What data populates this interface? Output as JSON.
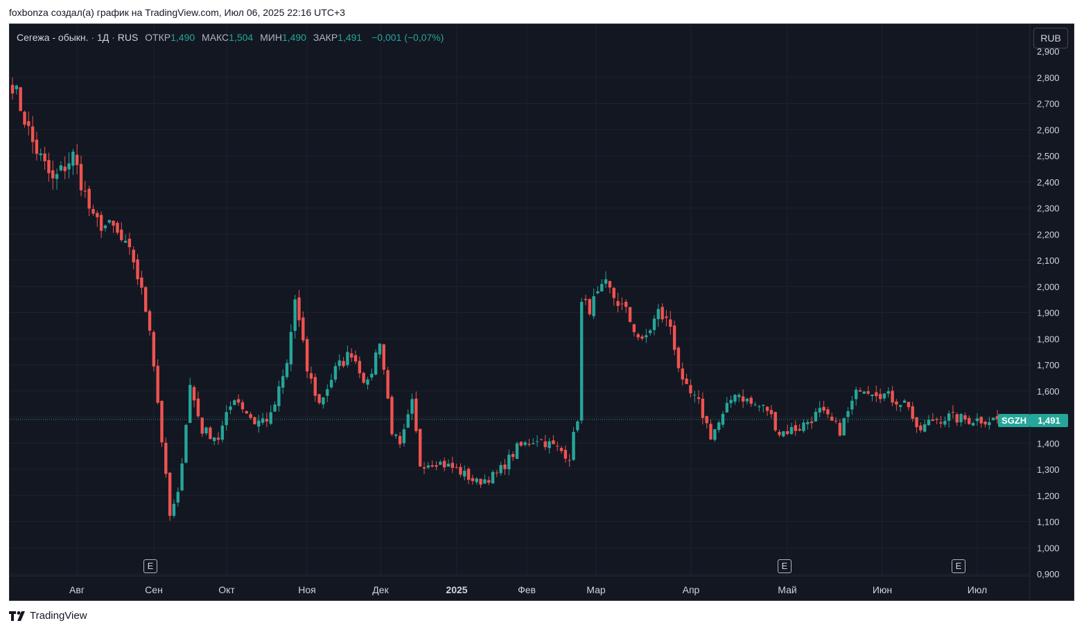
{
  "caption": "foxbonza создал(а) график на TradingView.com, Июл 06, 2025 22:16 UTC+3",
  "legend": {
    "symbol": "Сегежа - обыкн.",
    "interval": "1Д",
    "exchange": "RUS",
    "open_label": "ОТКР",
    "open_value": "1,490",
    "high_label": "МАКС",
    "high_value": "1,504",
    "low_label": "МИН",
    "low_value": "1,490",
    "close_label": "ЗАКР",
    "close_value": "1,491",
    "change": "−0,001 (−0,07%)"
  },
  "currency_button": "RUB",
  "ticker_tag": "SGZH",
  "price_tag": "1,491",
  "earnings_badge": "E",
  "brand": "TradingView",
  "colors": {
    "up": "#26a69a",
    "down": "#ef5350",
    "background": "#131722",
    "grid": "#1e222d",
    "axis_text": "#d1d4dc"
  },
  "chart_data": {
    "type": "candlestick",
    "y_axis": {
      "min": 0.9,
      "max": 2.9,
      "ticks": [
        2.8,
        2.7,
        2.6,
        2.5,
        2.4,
        2.3,
        2.2,
        2.1,
        2.0,
        1.9,
        1.8,
        1.7,
        1.6,
        1.5,
        1.4,
        1.3,
        1.2,
        1.1,
        1.0,
        0.9
      ],
      "tick_labels": [
        "2,800",
        "2,700",
        "2,600",
        "2,500",
        "2,400",
        "2,300",
        "2,200",
        "2,100",
        "2,000",
        "1,900",
        "1,800",
        "1,700",
        "1,600",
        "1,500",
        "1,400",
        "1,300",
        "1,200",
        "1,100",
        "1,000",
        "0,900"
      ],
      "top_partial_label": "2,900"
    },
    "x_axis": {
      "labels": [
        "Авг",
        "Сен",
        "Окт",
        "Ноя",
        "Дек",
        "2025",
        "Фев",
        "Мар",
        "Апр",
        "Май",
        "Июн",
        "Июл"
      ],
      "bold_label": "2025",
      "start": "2024-07-12",
      "end": "2025-07-04",
      "trading_days": 245
    },
    "last_price": 1.491,
    "earnings_markers": [
      "Сен",
      "Май",
      "Июн"
    ],
    "anchors": [
      [
        0,
        2.78
      ],
      [
        5,
        2.55
      ],
      [
        10,
        2.4
      ],
      [
        15,
        2.5
      ],
      [
        20,
        2.25
      ],
      [
        25,
        2.22
      ],
      [
        30,
        2.1
      ],
      [
        34,
        1.85
      ],
      [
        39,
        1.12
      ],
      [
        41,
        1.2
      ],
      [
        44,
        1.62
      ],
      [
        47,
        1.45
      ],
      [
        51,
        1.42
      ],
      [
        55,
        1.58
      ],
      [
        60,
        1.48
      ],
      [
        64,
        1.5
      ],
      [
        68,
        1.7
      ],
      [
        70,
        1.95
      ],
      [
        73,
        1.68
      ],
      [
        76,
        1.55
      ],
      [
        80,
        1.68
      ],
      [
        84,
        1.75
      ],
      [
        88,
        1.62
      ],
      [
        91,
        1.8
      ],
      [
        94,
        1.45
      ],
      [
        96,
        1.38
      ],
      [
        99,
        1.55
      ],
      [
        101,
        1.32
      ],
      [
        105,
        1.33
      ],
      [
        110,
        1.3
      ],
      [
        115,
        1.25
      ],
      [
        120,
        1.28
      ],
      [
        125,
        1.38
      ],
      [
        130,
        1.42
      ],
      [
        135,
        1.38
      ],
      [
        138,
        1.35
      ],
      [
        140,
        1.5
      ],
      [
        141,
        1.93
      ],
      [
        143,
        1.92
      ],
      [
        147,
        2.0
      ],
      [
        152,
        1.9
      ],
      [
        156,
        1.78
      ],
      [
        160,
        1.9
      ],
      [
        163,
        1.85
      ],
      [
        166,
        1.62
      ],
      [
        170,
        1.55
      ],
      [
        173,
        1.43
      ],
      [
        176,
        1.5
      ],
      [
        179,
        1.6
      ],
      [
        183,
        1.55
      ],
      [
        187,
        1.53
      ],
      [
        190,
        1.44
      ],
      [
        195,
        1.46
      ],
      [
        200,
        1.52
      ],
      [
        205,
        1.45
      ],
      [
        210,
        1.62
      ],
      [
        214,
        1.6
      ],
      [
        218,
        1.57
      ],
      [
        222,
        1.55
      ],
      [
        224,
        1.44
      ],
      [
        228,
        1.49
      ],
      [
        232,
        1.5
      ],
      [
        236,
        1.49
      ],
      [
        244,
        1.491
      ]
    ]
  }
}
